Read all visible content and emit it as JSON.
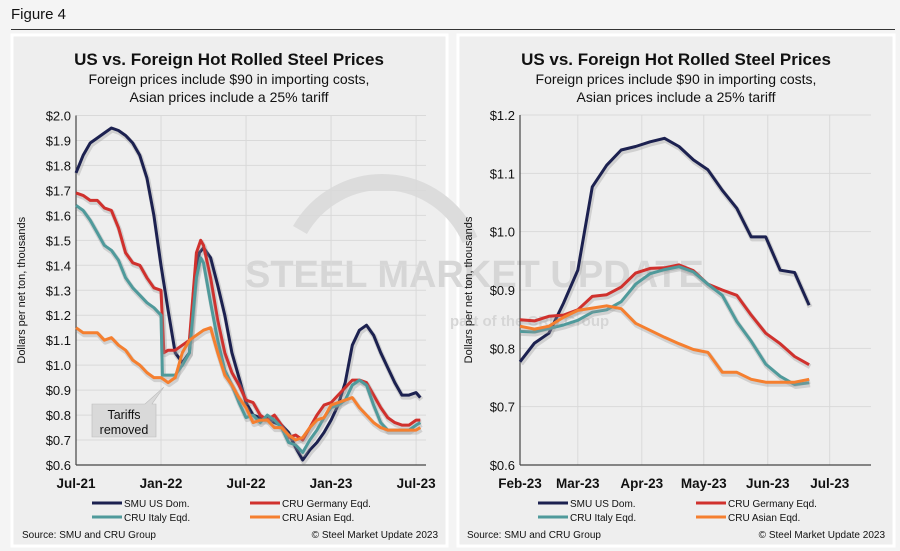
{
  "figure_label": "Figure 4",
  "colors": {
    "smu": "#1c2150",
    "germany": "#d0312d",
    "italy": "#4f9a9b",
    "asian": "#f57f2f"
  },
  "watermark": {
    "logo": "STEEL MARKET UPDATE",
    "tagline": "part of the CRU Group"
  },
  "chart_data": [
    {
      "type": "line",
      "title": "US vs. Foreign Hot Rolled Steel Prices",
      "subtitle_1": "Foreign prices include $90 in importing costs,",
      "subtitle_2": "Asian prices include a 25% tariff",
      "ylabel": "Dollars per net ton, thousands",
      "xlabel": "",
      "x_unit": "months since Jul-21",
      "xlim": [
        0,
        24.7
      ],
      "ylim": [
        0.6,
        2.0
      ],
      "grid": true,
      "legend_placement": "bottom",
      "x_ticks": [
        {
          "v": 0,
          "label": "Jul-21"
        },
        {
          "v": 6,
          "label": "Jan-22"
        },
        {
          "v": 12,
          "label": "Jul-22"
        },
        {
          "v": 18,
          "label": "Jan-23"
        },
        {
          "v": 24,
          "label": "Jul-23"
        }
      ],
      "y_ticks": [
        "$0.6",
        "$0.7",
        "$0.8",
        "$0.9",
        "$1.0",
        "$1.1",
        "$1.2",
        "$1.3",
        "$1.4",
        "$1.5",
        "$1.6",
        "$1.7",
        "$1.8",
        "$1.9",
        "$2.0"
      ],
      "annotation": {
        "line1": "Tariffs",
        "line2": "removed",
        "x": 6.2,
        "y": 0.96
      },
      "series": [
        {
          "name": "SMU US Dom.",
          "key": "smu",
          "points": [
            [
              0,
              1.77
            ],
            [
              0.5,
              1.84
            ],
            [
              1,
              1.89
            ],
            [
              1.5,
              1.91
            ],
            [
              2,
              1.93
            ],
            [
              2.5,
              1.95
            ],
            [
              3,
              1.94
            ],
            [
              3.5,
              1.92
            ],
            [
              4,
              1.89
            ],
            [
              4.5,
              1.84
            ],
            [
              5,
              1.75
            ],
            [
              5.5,
              1.6
            ],
            [
              6,
              1.4
            ],
            [
              6.5,
              1.22
            ],
            [
              7,
              1.05
            ],
            [
              7.5,
              1.01
            ],
            [
              8,
              1.05
            ],
            [
              8.3,
              1.3
            ],
            [
              8.7,
              1.45
            ],
            [
              9,
              1.47
            ],
            [
              9.5,
              1.43
            ],
            [
              10,
              1.32
            ],
            [
              10.5,
              1.2
            ],
            [
              11,
              1.05
            ],
            [
              11.5,
              0.95
            ],
            [
              12,
              0.85
            ],
            [
              12.5,
              0.8
            ],
            [
              13,
              0.79
            ],
            [
              13.5,
              0.79
            ],
            [
              14,
              0.77
            ],
            [
              14.5,
              0.76
            ],
            [
              15,
              0.73
            ],
            [
              15.5,
              0.67
            ],
            [
              16,
              0.62
            ],
            [
              16.5,
              0.66
            ],
            [
              17,
              0.69
            ],
            [
              17.5,
              0.73
            ],
            [
              18,
              0.78
            ],
            [
              18.5,
              0.84
            ],
            [
              19,
              0.93
            ],
            [
              19.5,
              1.08
            ],
            [
              20,
              1.14
            ],
            [
              20.5,
              1.16
            ],
            [
              21,
              1.12
            ],
            [
              21.5,
              1.05
            ],
            [
              22,
              0.99
            ],
            [
              22.5,
              0.93
            ],
            [
              23,
              0.88
            ],
            [
              23.5,
              0.88
            ],
            [
              24,
              0.89
            ],
            [
              24.3,
              0.87
            ]
          ]
        },
        {
          "name": "CRU Germany Eqd.",
          "key": "germany",
          "points": [
            [
              0,
              1.69
            ],
            [
              0.5,
              1.68
            ],
            [
              1,
              1.66
            ],
            [
              1.5,
              1.66
            ],
            [
              2,
              1.63
            ],
            [
              2.5,
              1.62
            ],
            [
              3,
              1.55
            ],
            [
              3.5,
              1.45
            ],
            [
              4,
              1.41
            ],
            [
              4.5,
              1.4
            ],
            [
              5,
              1.35
            ],
            [
              5.5,
              1.31
            ],
            [
              6,
              1.3
            ],
            [
              6.2,
              1.05
            ],
            [
              6.5,
              1.06
            ],
            [
              7,
              1.06
            ],
            [
              7.5,
              1.08
            ],
            [
              8,
              1.1
            ],
            [
              8.5,
              1.45
            ],
            [
              8.8,
              1.5
            ],
            [
              9,
              1.48
            ],
            [
              9.5,
              1.35
            ],
            [
              10,
              1.18
            ],
            [
              10.5,
              1.05
            ],
            [
              11,
              0.97
            ],
            [
              11.5,
              0.92
            ],
            [
              12,
              0.86
            ],
            [
              12.5,
              0.85
            ],
            [
              13,
              0.8
            ],
            [
              13.5,
              0.78
            ],
            [
              14,
              0.8
            ],
            [
              14.5,
              0.76
            ],
            [
              15,
              0.71
            ],
            [
              15.5,
              0.72
            ],
            [
              16,
              0.7
            ],
            [
              16.5,
              0.75
            ],
            [
              17,
              0.8
            ],
            [
              17.5,
              0.84
            ],
            [
              18,
              0.85
            ],
            [
              18.5,
              0.88
            ],
            [
              19,
              0.91
            ],
            [
              19.5,
              0.94
            ],
            [
              20,
              0.94
            ],
            [
              20.5,
              0.93
            ],
            [
              21,
              0.88
            ],
            [
              21.5,
              0.83
            ],
            [
              22,
              0.79
            ],
            [
              22.5,
              0.77
            ],
            [
              23,
              0.76
            ],
            [
              23.5,
              0.76
            ],
            [
              24,
              0.78
            ],
            [
              24.3,
              0.78
            ]
          ]
        },
        {
          "name": "CRU Italy Eqd.",
          "key": "italy",
          "points": [
            [
              0,
              1.64
            ],
            [
              0.5,
              1.62
            ],
            [
              1,
              1.58
            ],
            [
              1.5,
              1.53
            ],
            [
              2,
              1.48
            ],
            [
              2.5,
              1.46
            ],
            [
              3,
              1.42
            ],
            [
              3.5,
              1.35
            ],
            [
              4,
              1.31
            ],
            [
              4.5,
              1.28
            ],
            [
              5,
              1.25
            ],
            [
              5.5,
              1.23
            ],
            [
              6,
              1.2
            ],
            [
              6.1,
              0.96
            ],
            [
              6.5,
              0.96
            ],
            [
              7,
              0.96
            ],
            [
              7.5,
              1.0
            ],
            [
              8,
              1.05
            ],
            [
              8.5,
              1.35
            ],
            [
              8.8,
              1.43
            ],
            [
              9,
              1.41
            ],
            [
              9.5,
              1.25
            ],
            [
              10,
              1.1
            ],
            [
              10.5,
              0.98
            ],
            [
              11,
              0.92
            ],
            [
              11.5,
              0.85
            ],
            [
              12,
              0.79
            ],
            [
              12.5,
              0.8
            ],
            [
              13,
              0.77
            ],
            [
              13.5,
              0.8
            ],
            [
              14,
              0.78
            ],
            [
              14.5,
              0.75
            ],
            [
              15,
              0.69
            ],
            [
              15.5,
              0.68
            ],
            [
              16,
              0.65
            ],
            [
              16.5,
              0.7
            ],
            [
              17,
              0.74
            ],
            [
              17.5,
              0.79
            ],
            [
              18,
              0.83
            ],
            [
              18.5,
              0.84
            ],
            [
              19,
              0.86
            ],
            [
              19.5,
              0.92
            ],
            [
              20,
              0.94
            ],
            [
              20.5,
              0.92
            ],
            [
              21,
              0.84
            ],
            [
              21.5,
              0.77
            ],
            [
              22,
              0.74
            ],
            [
              22.5,
              0.74
            ],
            [
              23,
              0.74
            ],
            [
              23.5,
              0.74
            ],
            [
              24,
              0.76
            ],
            [
              24.3,
              0.77
            ]
          ]
        },
        {
          "name": "CRU Asian Eqd.",
          "key": "asian",
          "points": [
            [
              0,
              1.15
            ],
            [
              0.5,
              1.13
            ],
            [
              1,
              1.13
            ],
            [
              1.5,
              1.13
            ],
            [
              2,
              1.1
            ],
            [
              2.5,
              1.11
            ],
            [
              3,
              1.08
            ],
            [
              3.5,
              1.06
            ],
            [
              4,
              1.02
            ],
            [
              4.5,
              1.0
            ],
            [
              5,
              0.97
            ],
            [
              5.5,
              0.95
            ],
            [
              6,
              0.95
            ],
            [
              6.5,
              0.93
            ],
            [
              7,
              0.95
            ],
            [
              7.5,
              1.05
            ],
            [
              8,
              1.1
            ],
            [
              8.5,
              1.12
            ],
            [
              9,
              1.14
            ],
            [
              9.5,
              1.15
            ],
            [
              10,
              1.05
            ],
            [
              10.5,
              0.96
            ],
            [
              11,
              0.92
            ],
            [
              11.5,
              0.87
            ],
            [
              12,
              0.83
            ],
            [
              12.5,
              0.77
            ],
            [
              13,
              0.78
            ],
            [
              13.5,
              0.78
            ],
            [
              14,
              0.75
            ],
            [
              14.5,
              0.75
            ],
            [
              15,
              0.72
            ],
            [
              15.5,
              0.7
            ],
            [
              16,
              0.71
            ],
            [
              16.5,
              0.75
            ],
            [
              17,
              0.78
            ],
            [
              17.5,
              0.79
            ],
            [
              18,
              0.84
            ],
            [
              18.5,
              0.85
            ],
            [
              19,
              0.86
            ],
            [
              19.5,
              0.87
            ],
            [
              20,
              0.83
            ],
            [
              20.5,
              0.8
            ],
            [
              21,
              0.77
            ],
            [
              21.5,
              0.75
            ],
            [
              22,
              0.74
            ],
            [
              22.5,
              0.74
            ],
            [
              23,
              0.74
            ],
            [
              23.5,
              0.74
            ],
            [
              24,
              0.74
            ],
            [
              24.3,
              0.75
            ]
          ]
        }
      ],
      "source": "Source: SMU and CRU Group",
      "copyright": "© Steel Market Update 2023"
    },
    {
      "type": "line",
      "title": "US vs. Foreign Hot Rolled Steel Prices",
      "subtitle_1": "Foreign prices include $90 in importing costs,",
      "subtitle_2": "Asian prices include a 25% tariff",
      "ylabel": "Dollars per net ton, thousands",
      "xlabel": "",
      "x_unit": "days since Feb 1 2023",
      "xlim": [
        0,
        170
      ],
      "ylim": [
        0.6,
        1.2
      ],
      "grid": true,
      "legend_placement": "bottom",
      "x_ticks": [
        {
          "v": 0,
          "label": "Feb-23"
        },
        {
          "v": 28,
          "label": "Mar-23"
        },
        {
          "v": 59,
          "label": "Apr-23"
        },
        {
          "v": 89,
          "label": "May-23"
        },
        {
          "v": 120,
          "label": "Jun-23"
        },
        {
          "v": 150,
          "label": "Jul-23"
        }
      ],
      "y_ticks": [
        "$0.6",
        "$0.7",
        "$0.8",
        "$0.9",
        "$1.0",
        "$1.1",
        "$1.2"
      ],
      "x_step_days": 7,
      "series": [
        {
          "name": "SMU US Dom.",
          "key": "smu",
          "values": [
            0.777,
            0.809,
            0.826,
            0.877,
            0.934,
            1.077,
            1.114,
            1.14,
            1.146,
            1.154,
            1.16,
            1.146,
            1.123,
            1.106,
            1.071,
            1.04,
            0.991,
            0.991,
            0.934,
            0.93,
            0.874
          ]
        },
        {
          "name": "CRU Germany Eqd.",
          "key": "germany",
          "values": [
            0.849,
            0.847,
            0.855,
            0.857,
            0.866,
            0.889,
            0.892,
            0.905,
            0.929,
            0.937,
            0.938,
            0.943,
            0.933,
            0.91,
            0.9,
            0.891,
            0.857,
            0.826,
            0.808,
            0.786,
            0.772
          ]
        },
        {
          "name": "CRU Italy Eqd.",
          "key": "italy",
          "values": [
            0.829,
            0.828,
            0.834,
            0.84,
            0.848,
            0.862,
            0.866,
            0.88,
            0.91,
            0.928,
            0.935,
            0.94,
            0.931,
            0.91,
            0.891,
            0.846,
            0.812,
            0.773,
            0.752,
            0.738,
            0.741
          ]
        },
        {
          "name": "CRU Asian Eqd.",
          "key": "asian",
          "values": [
            0.838,
            0.833,
            0.838,
            0.853,
            0.865,
            0.869,
            0.873,
            0.868,
            0.843,
            0.831,
            0.819,
            0.808,
            0.798,
            0.793,
            0.759,
            0.759,
            0.747,
            0.742,
            0.742,
            0.742,
            0.747
          ]
        }
      ],
      "source": "Source: SMU and CRU Group",
      "copyright": "© Steel Market Update 2023"
    }
  ]
}
